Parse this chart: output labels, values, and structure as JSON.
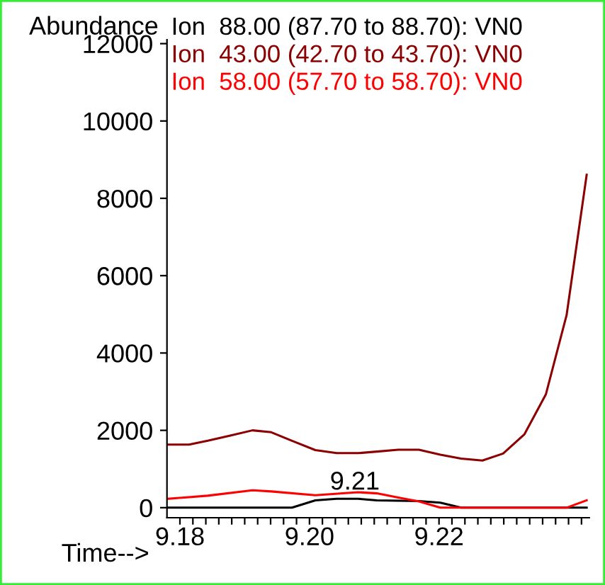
{
  "chart_data": {
    "type": "line",
    "xlabel": "Time-->",
    "ylabel": "Abundance",
    "xlim": [
      9.178,
      9.2432
    ],
    "ylim": [
      -260,
      12100
    ],
    "xticks": [
      {
        "value": 9.18,
        "label": "9.18"
      },
      {
        "value": 9.182,
        "label": null
      },
      {
        "value": 9.184,
        "label": null
      },
      {
        "value": 9.186,
        "label": null
      },
      {
        "value": 9.188,
        "label": null
      },
      {
        "value": 9.19,
        "label": null
      },
      {
        "value": 9.192,
        "label": null
      },
      {
        "value": 9.194,
        "label": null
      },
      {
        "value": 9.196,
        "label": null
      },
      {
        "value": 9.198,
        "label": null
      },
      {
        "value": 9.2,
        "label": "9.20"
      },
      {
        "value": 9.202,
        "label": null
      },
      {
        "value": 9.204,
        "label": null
      },
      {
        "value": 9.206,
        "label": null
      },
      {
        "value": 9.208,
        "label": null
      },
      {
        "value": 9.21,
        "label": null
      },
      {
        "value": 9.212,
        "label": null
      },
      {
        "value": 9.214,
        "label": null
      },
      {
        "value": 9.216,
        "label": null
      },
      {
        "value": 9.218,
        "label": null
      },
      {
        "value": 9.22,
        "label": "9.22"
      },
      {
        "value": 9.222,
        "label": null
      },
      {
        "value": 9.224,
        "label": null
      },
      {
        "value": 9.226,
        "label": null
      },
      {
        "value": 9.228,
        "label": null
      },
      {
        "value": 9.23,
        "label": null
      },
      {
        "value": 9.232,
        "label": null
      },
      {
        "value": 9.234,
        "label": null
      },
      {
        "value": 9.236,
        "label": null
      },
      {
        "value": 9.238,
        "label": null
      },
      {
        "value": 9.24,
        "label": null
      },
      {
        "value": 9.242,
        "label": null
      }
    ],
    "yticks": [
      0,
      2000,
      4000,
      6000,
      8000,
      10000,
      12000
    ],
    "grid": false,
    "legend": "top",
    "marker": "none",
    "line_style": "solid",
    "annotations": [
      {
        "text": "9.21",
        "x": 9.207,
        "y": 230
      }
    ],
    "series": [
      {
        "name": "Ion  88.00 (87.70 to 88.70): VN0",
        "color": "#000000",
        "x": [
          9.1781,
          9.1973,
          9.2009,
          9.2042,
          9.2075,
          9.2104,
          9.2137,
          9.2169,
          9.2202,
          9.2234,
          9.2428
        ],
        "values": [
          0,
          0,
          190,
          230,
          230,
          190,
          180,
          170,
          130,
          0,
          0
        ]
      },
      {
        "name": "Ion  43.00 (42.70 to 43.70): VN0",
        "color": "#8b0000",
        "x": [
          9.1781,
          9.1814,
          9.1843,
          9.1879,
          9.1912,
          9.1941,
          9.1973,
          9.2009,
          9.2042,
          9.2075,
          9.2104,
          9.2137,
          9.2169,
          9.2202,
          9.2234,
          9.2267,
          9.2299,
          9.2332,
          9.2365,
          9.2397,
          9.2428
        ],
        "values": [
          1630,
          1630,
          1730,
          1870,
          2000,
          1950,
          1730,
          1490,
          1410,
          1410,
          1450,
          1500,
          1500,
          1370,
          1270,
          1220,
          1400,
          1900,
          2930,
          4980,
          8610
        ]
      },
      {
        "name": "Ion  58.00 (57.70 to 58.70): VN0",
        "color": "#ff0000",
        "x": [
          9.1781,
          9.1843,
          9.1912,
          9.1941,
          9.2009,
          9.2075,
          9.2104,
          9.2137,
          9.2169,
          9.2202,
          9.2234,
          9.2397,
          9.2428
        ],
        "values": [
          230,
          310,
          450,
          420,
          320,
          400,
          370,
          260,
          160,
          0,
          0,
          0,
          190
        ]
      }
    ]
  }
}
